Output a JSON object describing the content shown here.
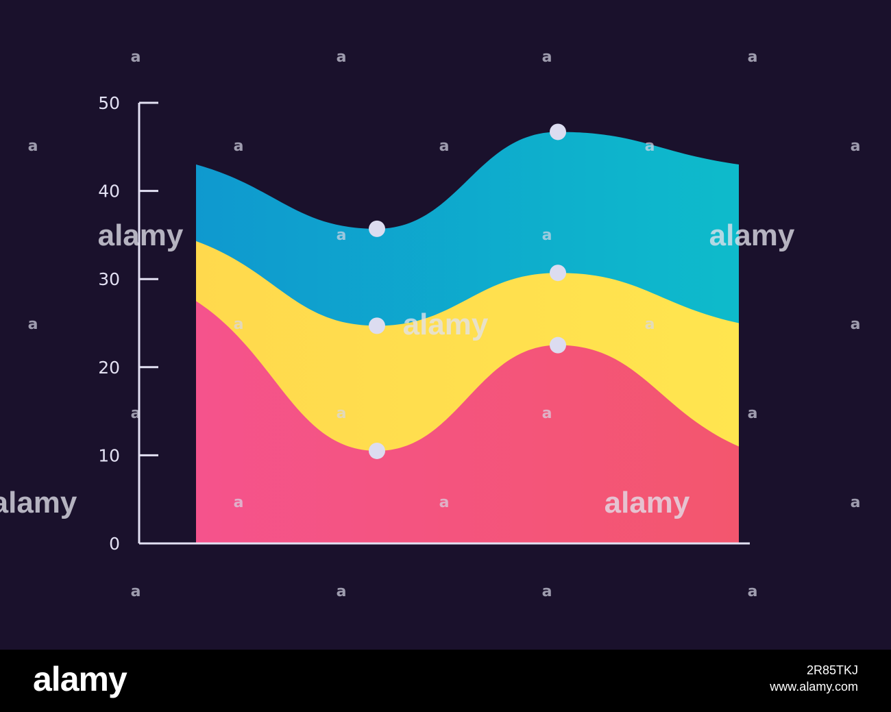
{
  "chart_data": {
    "type": "area",
    "stacked": true,
    "title": "",
    "xlabel": "",
    "ylabel": "",
    "ylim": [
      0,
      50
    ],
    "y_ticks": [
      0,
      10,
      20,
      30,
      40,
      50
    ],
    "x": [
      0,
      1,
      2,
      3
    ],
    "series": [
      {
        "values": [
          27.5,
          10.5,
          22.5,
          11.0
        ],
        "color_start": "#f5538c",
        "color_end": "#f3566e"
      },
      {
        "values": [
          6.8,
          14.2,
          8.2,
          14.0
        ],
        "color_start": "#ffd94d",
        "color_end": "#ffe54f"
      },
      {
        "values": [
          8.7,
          11.0,
          16.0,
          18.0
        ],
        "color_start": "#0f99cf",
        "color_end": "#0ebbcb"
      }
    ],
    "markers": [
      {
        "x": 1,
        "y": 35.7
      },
      {
        "x": 2,
        "y": 46.7
      },
      {
        "x": 1,
        "y": 24.7
      },
      {
        "x": 2,
        "y": 30.7
      },
      {
        "x": 1,
        "y": 10.5
      },
      {
        "x": 2,
        "y": 22.5
      }
    ],
    "grid": false,
    "legend": "none"
  },
  "colors": {
    "background": "#1a112c",
    "axis": "#e3e1f3",
    "marker": "#dcdcf0"
  },
  "watermark": {
    "small": "a",
    "brand": "alamy"
  },
  "footer": {
    "logo": "alamy",
    "image_id": "2R85TKJ",
    "site": "www.alamy.com"
  }
}
